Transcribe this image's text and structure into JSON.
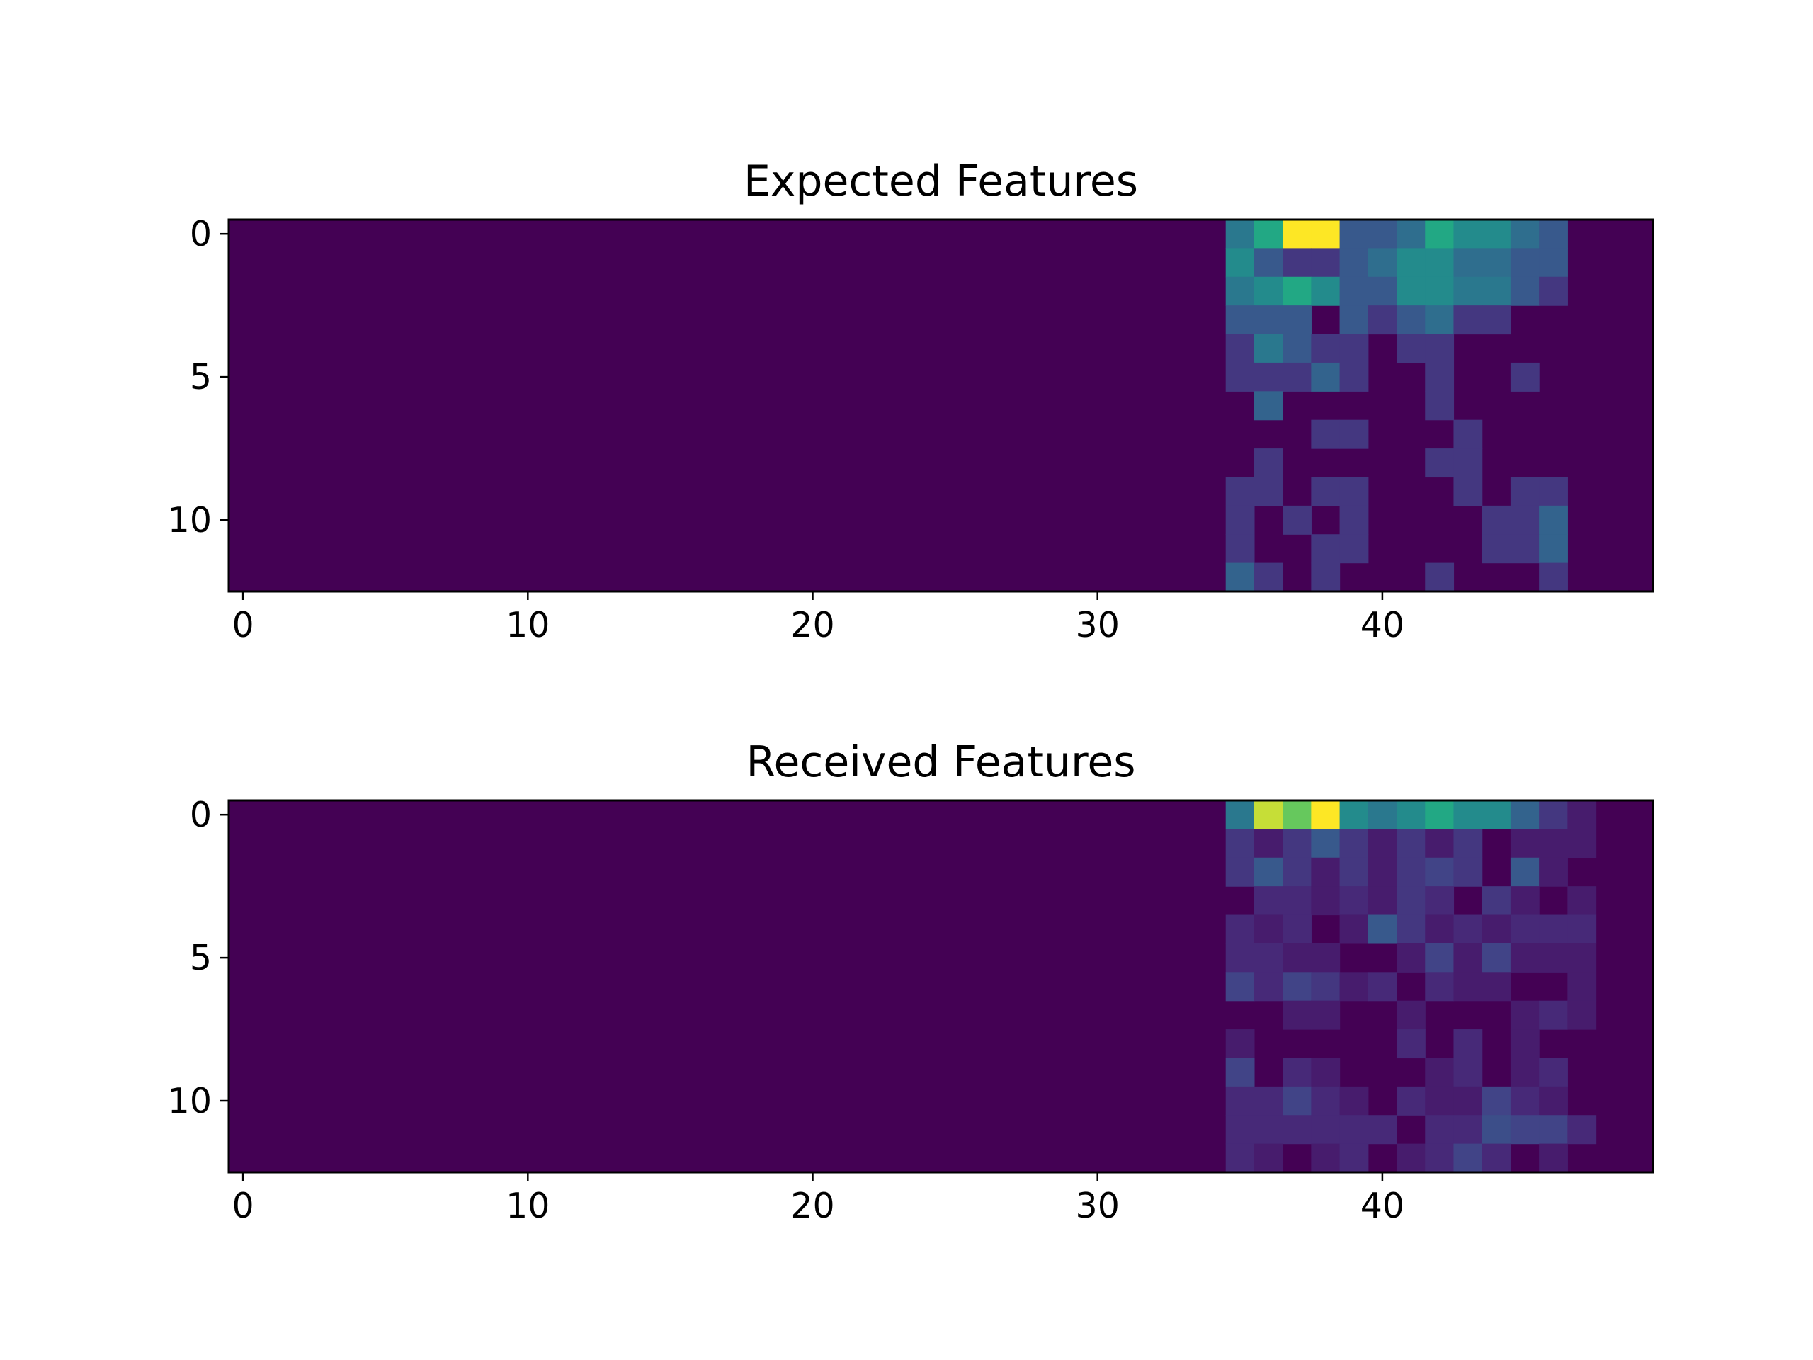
{
  "chart_data": [
    {
      "type": "heatmap",
      "title": "Expected Features",
      "colormap": "viridis",
      "x_ticks": [
        0,
        10,
        20,
        30,
        40
      ],
      "y_ticks": [
        0,
        5,
        10
      ],
      "xlim": [
        -0.5,
        49.5
      ],
      "ylim": [
        12.5,
        -0.5
      ],
      "rows": 13,
      "cols": 50,
      "data_col_start": 35,
      "data": [
        [
          0.5,
          0.75,
          1.0,
          1.0,
          0.35,
          0.35,
          0.45,
          0.75,
          0.6,
          0.6,
          0.45,
          0.35,
          0.0
        ],
        [
          0.6,
          0.35,
          0.2,
          0.2,
          0.35,
          0.45,
          0.6,
          0.6,
          0.45,
          0.45,
          0.35,
          0.35,
          0.0
        ],
        [
          0.5,
          0.6,
          0.75,
          0.6,
          0.35,
          0.35,
          0.6,
          0.6,
          0.5,
          0.5,
          0.35,
          0.2,
          0.0
        ],
        [
          0.35,
          0.35,
          0.35,
          0.0,
          0.35,
          0.2,
          0.35,
          0.45,
          0.2,
          0.2,
          0.0,
          0.0,
          0.0
        ],
        [
          0.2,
          0.5,
          0.35,
          0.2,
          0.2,
          0.0,
          0.2,
          0.2,
          0.0,
          0.0,
          0.0,
          0.0,
          0.0
        ],
        [
          0.2,
          0.2,
          0.2,
          0.4,
          0.2,
          0.0,
          0.0,
          0.2,
          0.0,
          0.0,
          0.2,
          0.0,
          0.0
        ],
        [
          0.0,
          0.4,
          0.0,
          0.0,
          0.0,
          0.0,
          0.0,
          0.2,
          0.0,
          0.0,
          0.0,
          0.0,
          0.0
        ],
        [
          0.0,
          0.0,
          0.0,
          0.2,
          0.2,
          0.0,
          0.0,
          0.0,
          0.2,
          0.0,
          0.0,
          0.0,
          0.0
        ],
        [
          0.0,
          0.2,
          0.0,
          0.0,
          0.0,
          0.0,
          0.0,
          0.2,
          0.2,
          0.0,
          0.0,
          0.0,
          0.0
        ],
        [
          0.2,
          0.2,
          0.0,
          0.2,
          0.2,
          0.0,
          0.0,
          0.0,
          0.2,
          0.0,
          0.2,
          0.2,
          0.0
        ],
        [
          0.2,
          0.0,
          0.2,
          0.0,
          0.2,
          0.0,
          0.0,
          0.0,
          0.0,
          0.2,
          0.2,
          0.4,
          0.0
        ],
        [
          0.2,
          0.0,
          0.0,
          0.2,
          0.2,
          0.0,
          0.0,
          0.0,
          0.0,
          0.2,
          0.2,
          0.4,
          0.0
        ],
        [
          0.4,
          0.2,
          0.0,
          0.2,
          0.0,
          0.0,
          0.0,
          0.2,
          0.0,
          0.0,
          0.0,
          0.2,
          0.0
        ]
      ]
    },
    {
      "type": "heatmap",
      "title": "Received Features",
      "colormap": "viridis",
      "x_ticks": [
        0,
        10,
        20,
        30,
        40
      ],
      "y_ticks": [
        0,
        5,
        10
      ],
      "xlim": [
        -0.5,
        49.5
      ],
      "ylim": [
        12.5,
        -0.5
      ],
      "rows": 13,
      "cols": 50,
      "data_col_start": 35,
      "data": [
        [
          0.5,
          0.95,
          0.85,
          1.0,
          0.6,
          0.5,
          0.6,
          0.75,
          0.6,
          0.6,
          0.4,
          0.2,
          0.1,
          0.0
        ],
        [
          0.2,
          0.1,
          0.2,
          0.35,
          0.2,
          0.1,
          0.2,
          0.1,
          0.2,
          0.0,
          0.1,
          0.1,
          0.1,
          0.0
        ],
        [
          0.2,
          0.35,
          0.2,
          0.1,
          0.2,
          0.1,
          0.2,
          0.25,
          0.2,
          0.0,
          0.35,
          0.1,
          0.0,
          0.0
        ],
        [
          0.0,
          0.15,
          0.15,
          0.1,
          0.15,
          0.1,
          0.2,
          0.15,
          0.0,
          0.2,
          0.1,
          0.0,
          0.1,
          0.0
        ],
        [
          0.15,
          0.1,
          0.15,
          0.0,
          0.1,
          0.35,
          0.2,
          0.1,
          0.15,
          0.1,
          0.15,
          0.15,
          0.15,
          0.0
        ],
        [
          0.15,
          0.15,
          0.1,
          0.1,
          0.0,
          0.0,
          0.1,
          0.25,
          0.1,
          0.25,
          0.1,
          0.1,
          0.1,
          0.0
        ],
        [
          0.25,
          0.15,
          0.25,
          0.2,
          0.1,
          0.15,
          0.0,
          0.15,
          0.1,
          0.1,
          0.0,
          0.0,
          0.1,
          0.0
        ],
        [
          0.0,
          0.0,
          0.1,
          0.1,
          0.0,
          0.0,
          0.1,
          0.0,
          0.0,
          0.0,
          0.1,
          0.15,
          0.1,
          0.0
        ],
        [
          0.1,
          0.0,
          0.0,
          0.0,
          0.0,
          0.0,
          0.15,
          0.0,
          0.15,
          0.0,
          0.1,
          0.0,
          0.0,
          0.0
        ],
        [
          0.25,
          0.0,
          0.15,
          0.1,
          0.0,
          0.0,
          0.0,
          0.1,
          0.15,
          0.0,
          0.1,
          0.15,
          0.0,
          0.0
        ],
        [
          0.15,
          0.15,
          0.25,
          0.15,
          0.1,
          0.0,
          0.15,
          0.1,
          0.1,
          0.25,
          0.15,
          0.1,
          0.0,
          0.0
        ],
        [
          0.15,
          0.15,
          0.15,
          0.15,
          0.15,
          0.15,
          0.0,
          0.15,
          0.15,
          0.3,
          0.25,
          0.25,
          0.15,
          0.0
        ],
        [
          0.15,
          0.1,
          0.0,
          0.1,
          0.15,
          0.0,
          0.1,
          0.15,
          0.25,
          0.15,
          0.0,
          0.1,
          0.0,
          0.0
        ]
      ]
    }
  ]
}
